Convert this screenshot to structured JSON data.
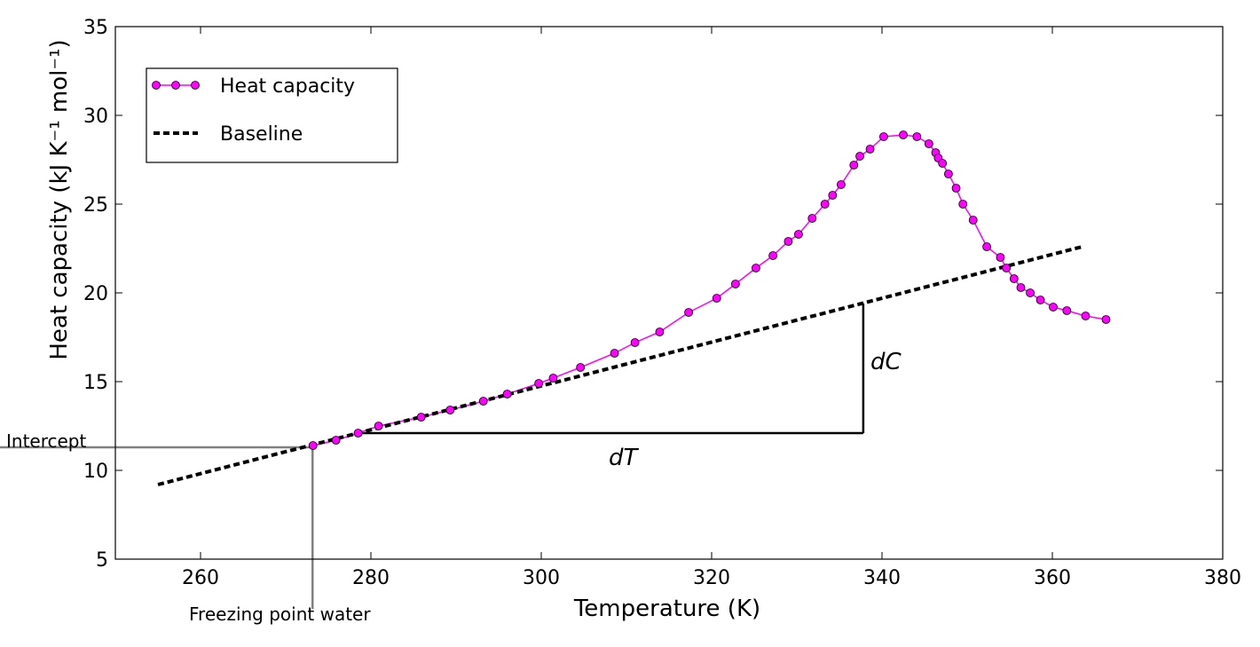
{
  "chart_data": {
    "type": "line",
    "xlabel": "Temperature (K)",
    "ylabel": "Heat capacity (kJ K⁻¹ mol⁻¹)",
    "xlim": [
      250,
      380
    ],
    "ylim": [
      5,
      35
    ],
    "x_ticks": [
      260,
      280,
      300,
      320,
      340,
      360,
      380
    ],
    "y_ticks": [
      5,
      10,
      15,
      20,
      25,
      30,
      35
    ],
    "grid": false,
    "legend_position": "top-left",
    "series": [
      {
        "name": "Heat capacity",
        "color": "#ff00ff",
        "marker": "circle",
        "style": "solid",
        "x": [
          273.2,
          275.9,
          278.5,
          280.9,
          285.9,
          289.3,
          293.2,
          296.0,
          299.7,
          301.4,
          304.6,
          308.6,
          311.0,
          313.9,
          317.3,
          320.6,
          322.8,
          325.2,
          327.2,
          329.0,
          330.2,
          331.8,
          333.3,
          334.2,
          335.2,
          336.7,
          337.4,
          338.6,
          340.2,
          342.5,
          344.1,
          345.5,
          346.3,
          346.6,
          347.1,
          347.8,
          348.7,
          349.5,
          350.7,
          352.3,
          353.9,
          354.6,
          355.5,
          356.3,
          357.4,
          358.6,
          360.1,
          361.7,
          363.9,
          366.3
        ],
        "y": [
          11.4,
          11.7,
          12.1,
          12.5,
          13.0,
          13.4,
          13.9,
          14.3,
          14.9,
          15.2,
          15.8,
          16.6,
          17.2,
          17.8,
          18.9,
          19.7,
          20.5,
          21.4,
          22.1,
          22.9,
          23.3,
          24.2,
          25.0,
          25.5,
          26.1,
          27.2,
          27.7,
          28.1,
          28.8,
          28.9,
          28.8,
          28.4,
          27.9,
          27.6,
          27.3,
          26.7,
          25.9,
          25.0,
          24.1,
          22.6,
          22.0,
          21.4,
          20.8,
          20.3,
          20.0,
          19.6,
          19.2,
          19.0,
          18.7,
          18.5
        ]
      },
      {
        "name": "Baseline",
        "color": "#000000",
        "style": "dashed",
        "x": [
          255,
          363.5
        ],
        "y": [
          9.2,
          22.6
        ]
      }
    ],
    "annotations": {
      "intercept_label": "Intercept",
      "freezing_label": "Freezing point water",
      "dT_label": "dT",
      "dC_label": "dC",
      "intercept_point": {
        "x": 273.15,
        "y": 11.3
      },
      "triangle": {
        "x0": 278.5,
        "x1": 337.8,
        "y0": 12.1,
        "y1": 19.4
      }
    }
  }
}
